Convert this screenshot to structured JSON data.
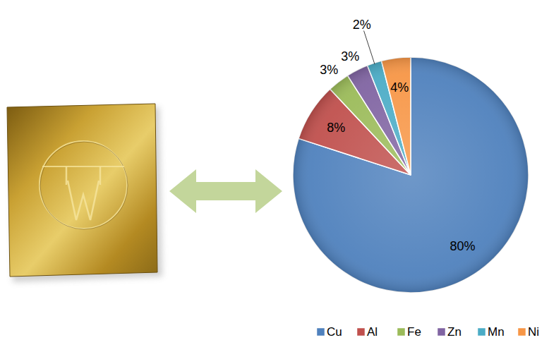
{
  "chart_data": {
    "type": "pie",
    "categories": [
      "Cu",
      "Al",
      "Fe",
      "Zn",
      "Mn",
      "Ni"
    ],
    "values": [
      80,
      8,
      3,
      3,
      2,
      4
    ],
    "value_labels": [
      "80%",
      "8%",
      "3%",
      "3%",
      "2%",
      "4%"
    ],
    "colors": [
      "#4f81bd",
      "#c0504d",
      "#9bbb59",
      "#8064a2",
      "#4bacc6",
      "#f79646"
    ],
    "data_labels": true,
    "legend": "bottom"
  }
}
